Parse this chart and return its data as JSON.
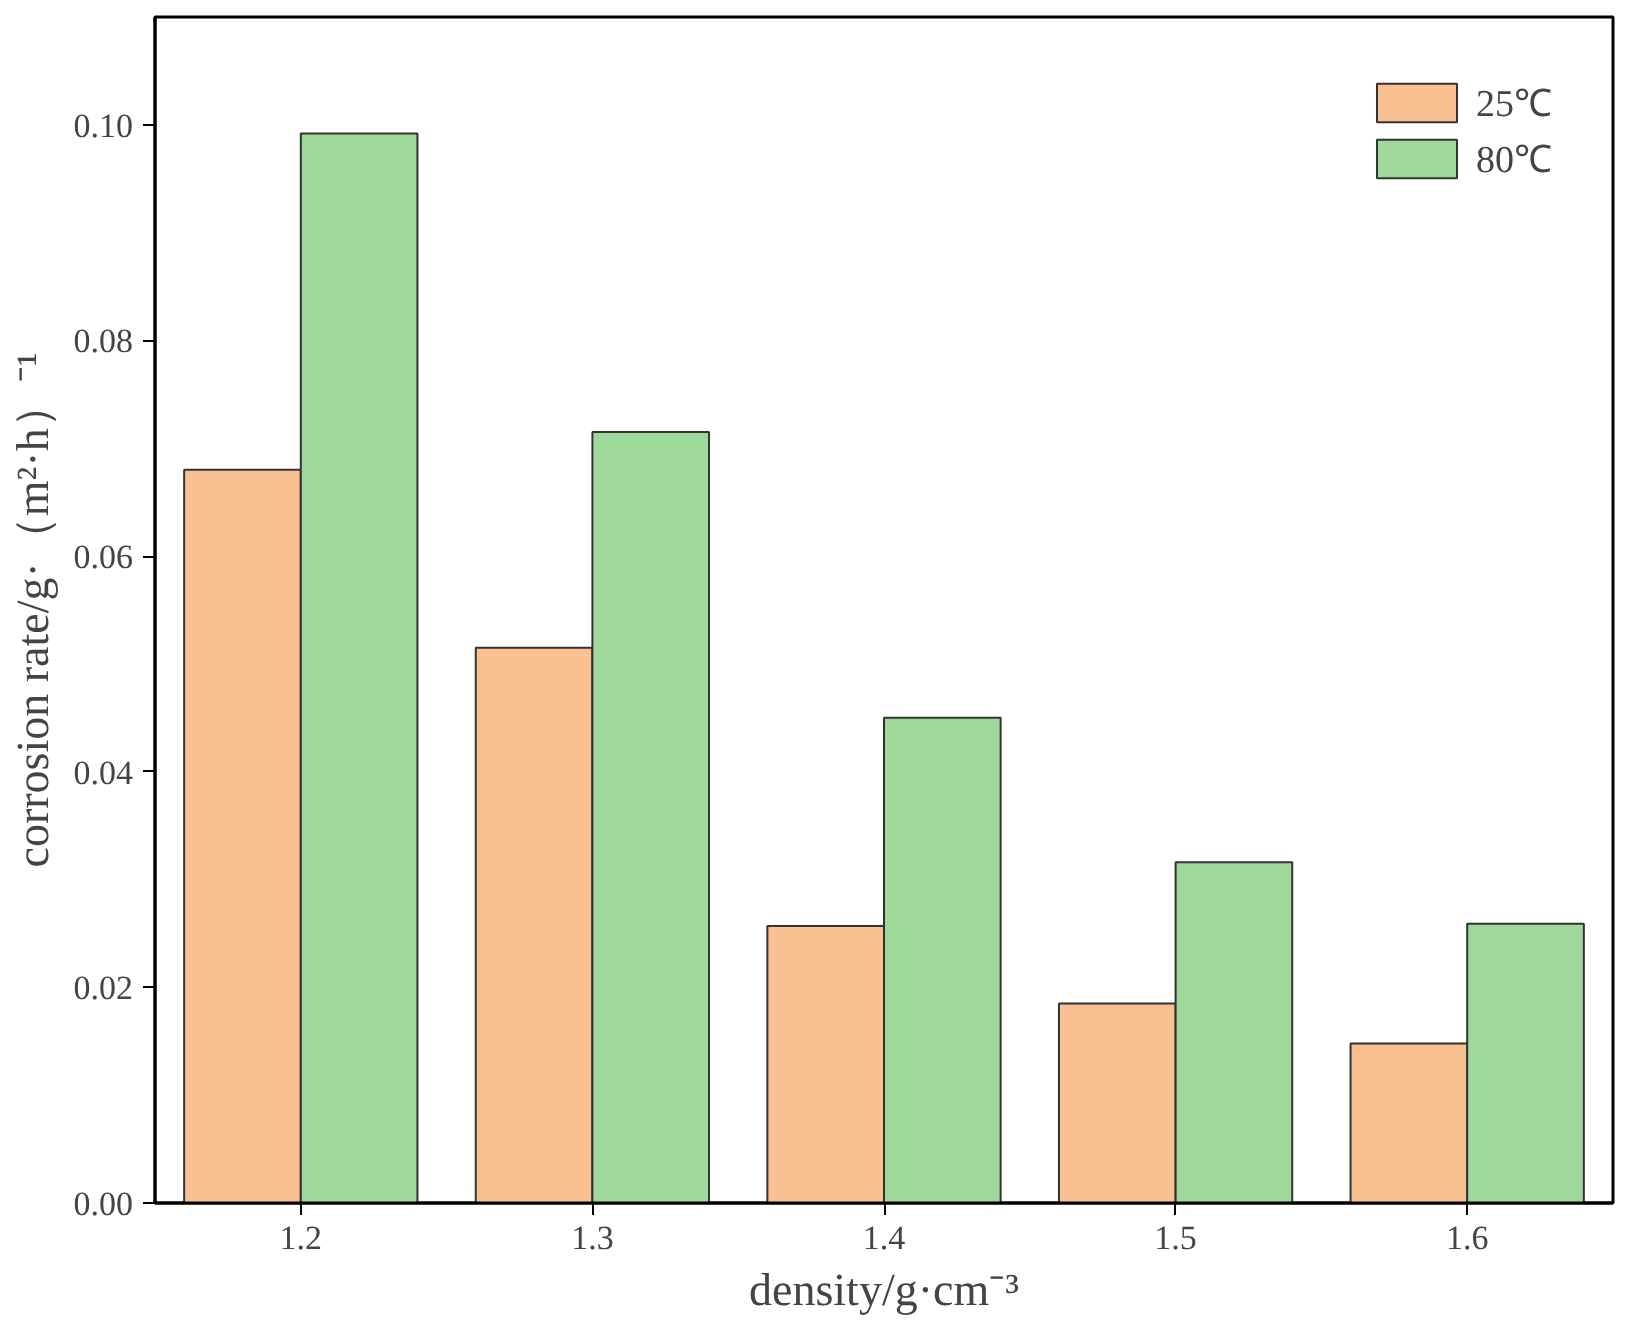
{
  "chart_data": {
    "type": "bar",
    "xlabel": "density/g·cm⁻³",
    "ylabel": "corrosion rate/g·（m²·h）⁻¹",
    "categories": [
      "1.2",
      "1.3",
      "1.4",
      "1.5",
      "1.6"
    ],
    "series": [
      {
        "name": "25℃",
        "color": "#f9c192",
        "values": [
          0.068,
          0.0515,
          0.0257,
          0.0185,
          0.0148
        ]
      },
      {
        "name": "80℃",
        "color": "#9ed89a",
        "values": [
          0.0992,
          0.0715,
          0.045,
          0.0316,
          0.0259
        ]
      }
    ],
    "ylim": [
      0,
      0.11
    ],
    "yticks": [
      {
        "value": 0,
        "label": "0.00"
      },
      {
        "value": 0.02,
        "label": "0.02"
      },
      {
        "value": 0.04,
        "label": "0.04"
      },
      {
        "value": 0.06,
        "label": "0.06"
      },
      {
        "value": 0.08,
        "label": "0.08"
      },
      {
        "value": 0.1,
        "label": "0.10"
      }
    ],
    "legend": "top right",
    "grid": false
  }
}
